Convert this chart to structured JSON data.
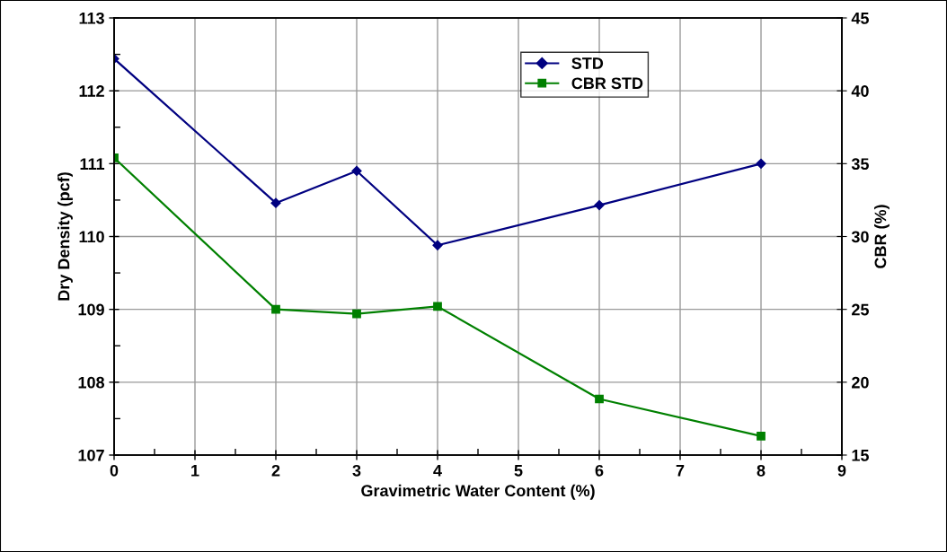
{
  "chart_data": {
    "type": "line",
    "xlabel": "Gravimetric Water Content (%)",
    "ylabel": "Dry Density (pcf)",
    "y2label": "CBR (%)",
    "x": [
      0,
      2,
      3,
      4,
      6,
      8
    ],
    "series": [
      {
        "name": "STD",
        "color": "#000080",
        "marker": "diamond",
        "values": [
          112.44,
          110.46,
          110.9,
          109.88,
          110.43,
          111.0
        ]
      },
      {
        "name": "CBR STD",
        "color": "#008000",
        "marker": "square",
        "axis": "y2",
        "values": [
          35.4,
          25.0,
          24.7,
          25.2,
          18.85,
          16.3
        ]
      }
    ],
    "xlim": [
      0,
      9
    ],
    "xticks": [
      0,
      1,
      2,
      3,
      4,
      5,
      6,
      7,
      8,
      9
    ],
    "ylim": [
      107,
      113
    ],
    "yticks": [
      107,
      108,
      109,
      110,
      111,
      112,
      113
    ],
    "y2lim": [
      15,
      45
    ],
    "y2ticks": [
      15,
      20,
      25,
      30,
      35,
      40,
      45
    ],
    "grid": true,
    "legend": "top right",
    "line_style": "solid"
  }
}
